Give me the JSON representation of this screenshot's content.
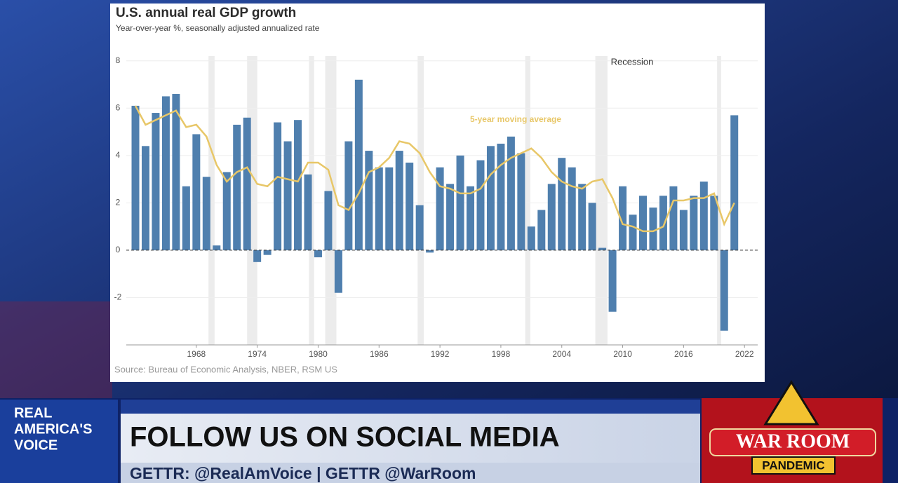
{
  "chart_data": {
    "type": "bar",
    "title": "U.S. annual real GDP growth",
    "subtitle": "Year-over-year %, seasonally adjusted annualized rate",
    "source": "Source: Bureau of Economic Analysis, NBER, RSM US",
    "line_label": "5-year moving average",
    "recession_label": "Recession",
    "x": [
      1962,
      1963,
      1964,
      1965,
      1966,
      1967,
      1968,
      1969,
      1970,
      1971,
      1972,
      1973,
      1974,
      1975,
      1976,
      1977,
      1978,
      1979,
      1980,
      1981,
      1982,
      1983,
      1984,
      1985,
      1986,
      1987,
      1988,
      1989,
      1990,
      1991,
      1992,
      1993,
      1994,
      1995,
      1996,
      1997,
      1998,
      1999,
      2000,
      2001,
      2002,
      2003,
      2004,
      2005,
      2006,
      2007,
      2008,
      2009,
      2010,
      2011,
      2012,
      2013,
      2014,
      2015,
      2016,
      2017,
      2018,
      2019,
      2020,
      2021
    ],
    "values": [
      6.1,
      4.4,
      5.8,
      6.5,
      6.6,
      2.7,
      4.9,
      3.1,
      0.2,
      3.3,
      5.3,
      5.6,
      -0.5,
      -0.2,
      5.4,
      4.6,
      5.5,
      3.2,
      -0.3,
      2.5,
      -1.8,
      4.6,
      7.2,
      4.2,
      3.5,
      3.5,
      4.2,
      3.7,
      1.9,
      -0.1,
      3.5,
      2.8,
      4.0,
      2.7,
      3.8,
      4.4,
      4.5,
      4.8,
      4.1,
      1.0,
      1.7,
      2.8,
      3.9,
      3.5,
      2.8,
      2.0,
      0.1,
      -2.6,
      2.7,
      1.5,
      2.3,
      1.8,
      2.3,
      2.7,
      1.7,
      2.3,
      2.9,
      2.3,
      -3.4,
      5.7
    ],
    "moving_average": [
      6.1,
      5.3,
      5.5,
      5.7,
      5.9,
      5.2,
      5.3,
      4.8,
      3.6,
      2.9,
      3.3,
      3.5,
      2.8,
      2.7,
      3.1,
      3.0,
      2.9,
      3.7,
      3.7,
      3.4,
      1.9,
      1.7,
      2.4,
      3.3,
      3.5,
      3.9,
      4.6,
      4.5,
      4.1,
      3.3,
      2.7,
      2.6,
      2.4,
      2.4,
      2.6,
      3.2,
      3.6,
      3.9,
      4.1,
      4.3,
      3.9,
      3.3,
      2.9,
      2.7,
      2.6,
      2.9,
      3.0,
      2.2,
      1.1,
      1.0,
      0.8,
      0.8,
      1.0,
      2.1,
      2.1,
      2.2,
      2.2,
      2.4,
      1.1,
      2.0
    ],
    "recessions": [
      [
        1969.2,
        1969.8
      ],
      [
        1973.0,
        1974.0
      ],
      [
        1979.1,
        1979.6
      ],
      [
        1980.7,
        1981.8
      ],
      [
        1989.8,
        1990.4
      ],
      [
        2000.4,
        2000.9
      ],
      [
        2007.3,
        2008.5
      ],
      [
        2019.3,
        2019.7
      ]
    ],
    "bar_color": "#4f7fae",
    "line_color": "#e8c768",
    "recession_color": "#ececec",
    "xlim": [
      1961.1,
      2023.3
    ],
    "xticks": [
      1968,
      1974,
      1980,
      1986,
      1992,
      1998,
      2004,
      2010,
      2016,
      2022
    ],
    "ylim": [
      -4,
      8.2
    ],
    "yticks": [
      -2,
      0,
      2,
      4,
      6,
      8
    ],
    "grid": true
  },
  "banner": {
    "logo": [
      "REAL",
      "AMERICA'S",
      "VOICE"
    ],
    "headline": "FOLLOW US ON SOCIAL MEDIA",
    "subline": "GETTR: @RealAmVoice | GETTR @WarRoom",
    "badge": "WAR ROOM",
    "badge_sub": "PANDEMIC"
  }
}
